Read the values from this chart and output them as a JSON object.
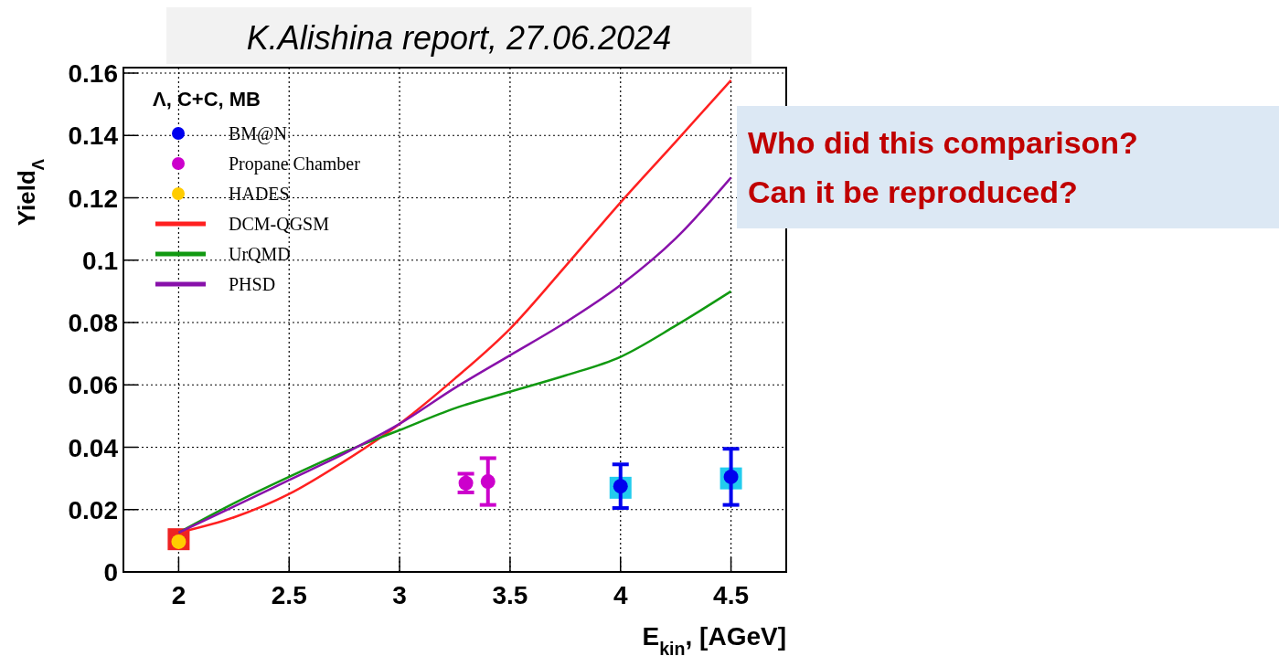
{
  "chart_data": {
    "type": "line",
    "xlabel": "E$_{kin}$, [AGeV]",
    "ylabel": "Yield$_{Λ}$",
    "legend_title": "Λ, C+C, MB",
    "annotations": [
      "K.Alishina report, 27.06.2024",
      "Who did this comparison?",
      "Can it be reproduced?"
    ],
    "xlim": [
      1.75,
      4.75
    ],
    "xticks": [
      2,
      2.5,
      3,
      3.5,
      4,
      4.5
    ],
    "ylim": [
      0,
      0.16
    ],
    "yticks": [
      0,
      0.02,
      0.04,
      0.06,
      0.08,
      0.1,
      0.12,
      0.14,
      0.16
    ],
    "grid": true,
    "legend": "top left",
    "line_style": "solid",
    "series": [
      {
        "type": "scatter",
        "marker": "square",
        "color": "#22ccee",
        "x": [
          4,
          4.5
        ],
        "values": [
          0.027,
          0.03
        ]
      },
      {
        "type": "scatter",
        "marker": "square",
        "color": "#ee2222",
        "x": [
          2
        ],
        "values": [
          0.0105
        ]
      },
      {
        "name": "BM@N",
        "type": "scatter",
        "marker": "circle",
        "color": "#0000ee",
        "x": [
          4,
          4.5
        ],
        "values": [
          0.0275,
          0.0305
        ],
        "errors": [
          0.007,
          0.009
        ]
      },
      {
        "name": "Propane Chamber",
        "type": "scatter",
        "marker": "circle",
        "color": "#cc00cc",
        "x": [
          3.3,
          3.4
        ],
        "values": [
          0.0285,
          0.029
        ],
        "errors": [
          0.003,
          0.0075
        ]
      },
      {
        "name": "HADES",
        "type": "scatter",
        "marker": "circle",
        "color": "#ffcc00",
        "x": [
          2
        ],
        "values": [
          0.0097
        ]
      },
      {
        "name": "DCM-QGSM",
        "color": "#ff2020",
        "x": [
          2,
          2.25,
          2.5,
          2.75,
          3,
          3.25,
          3.5,
          3.75,
          4,
          4.25,
          4.5
        ],
        "values": [
          0.0126,
          0.0175,
          0.025,
          0.0355,
          0.0475,
          0.062,
          0.078,
          0.098,
          0.1185,
          0.138,
          0.1577
        ]
      },
      {
        "name": "UrQMD",
        "color": "#119911",
        "x": [
          2,
          2.25,
          2.5,
          2.75,
          3,
          3.25,
          3.5,
          3.75,
          4,
          4.25,
          4.5
        ],
        "values": [
          0.0126,
          0.022,
          0.0305,
          0.0385,
          0.0455,
          0.0525,
          0.0578,
          0.063,
          0.069,
          0.079,
          0.09
        ]
      },
      {
        "name": "PHSD",
        "color": "#8811aa",
        "x": [
          2,
          2.25,
          2.5,
          2.75,
          3,
          3.25,
          3.5,
          3.75,
          4,
          4.25,
          4.5
        ],
        "values": [
          0.0126,
          0.021,
          0.0295,
          0.038,
          0.0475,
          0.059,
          0.0695,
          0.08,
          0.092,
          0.107,
          0.1265
        ]
      }
    ]
  }
}
